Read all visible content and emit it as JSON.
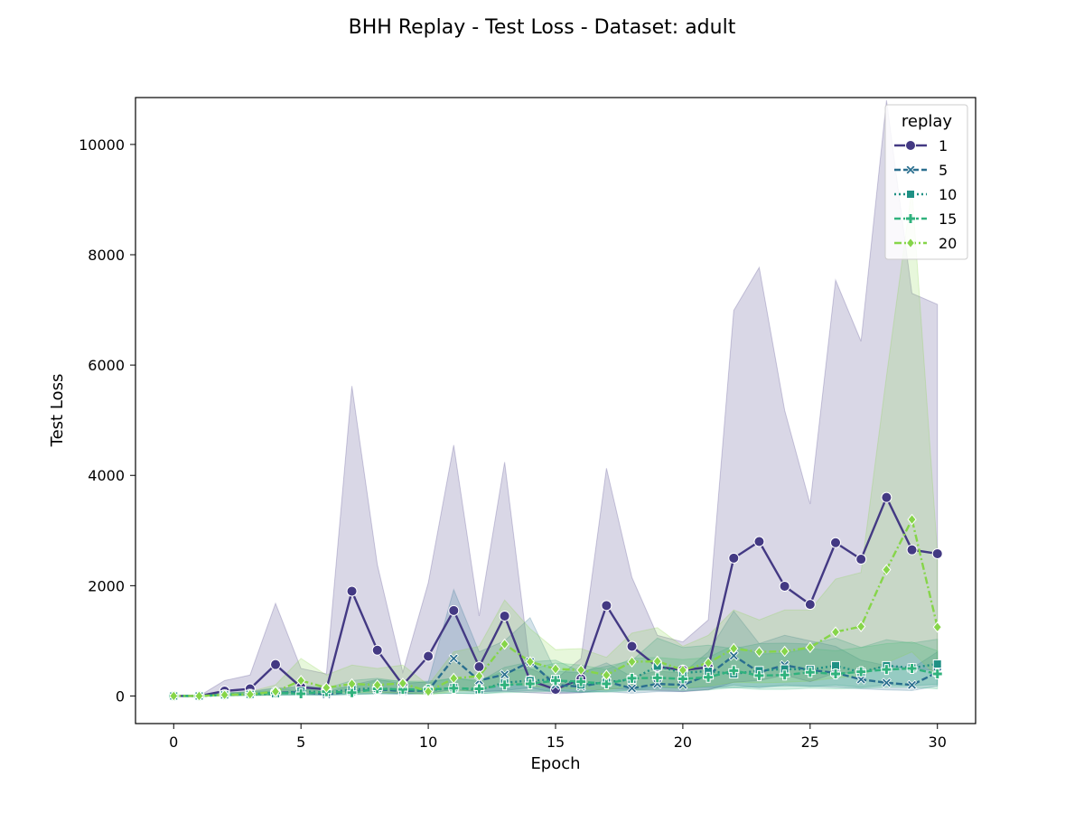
{
  "chart_data": {
    "type": "line",
    "title": "BHH Replay - Test Loss - Dataset: adult",
    "xlabel": "Epoch",
    "ylabel": "Test Loss",
    "xlim": [
      -1.5,
      31.5
    ],
    "ylim": [
      -500,
      10850
    ],
    "xticks": [
      0,
      5,
      10,
      15,
      20,
      25,
      30
    ],
    "yticks": [
      0,
      2000,
      4000,
      6000,
      8000,
      10000
    ],
    "grid": false,
    "legend": {
      "title": "replay",
      "placement": "top-right"
    },
    "x": [
      0,
      1,
      2,
      3,
      4,
      5,
      6,
      7,
      8,
      9,
      10,
      11,
      12,
      13,
      14,
      15,
      16,
      17,
      18,
      19,
      20,
      21,
      22,
      23,
      24,
      25,
      26,
      27,
      28,
      29,
      30
    ],
    "series": [
      {
        "name": "1",
        "color": "#433983",
        "marker": "circle",
        "dash": "solid",
        "values": [
          0,
          0,
          90,
          130,
          570,
          160,
          120,
          1900,
          830,
          200,
          720,
          1550,
          530,
          1450,
          280,
          120,
          310,
          1640,
          900,
          530,
          470,
          520,
          2500,
          2800,
          1990,
          1660,
          2780,
          2480,
          3600,
          2650,
          2580
        ],
        "lower": [
          0,
          0,
          10,
          20,
          100,
          30,
          40,
          100,
          80,
          40,
          60,
          110,
          80,
          90,
          60,
          40,
          60,
          130,
          120,
          100,
          80,
          110,
          250,
          280,
          380,
          260,
          420,
          420,
          550,
          500,
          460
        ],
        "upper": [
          0,
          0,
          280,
          380,
          1680,
          500,
          400,
          5620,
          2380,
          430,
          2050,
          4550,
          1450,
          4240,
          500,
          300,
          680,
          4130,
          2150,
          1100,
          980,
          1380,
          6990,
          7770,
          5180,
          3480,
          7540,
          6430,
          10800,
          7300,
          7100
        ]
      },
      {
        "name": "5",
        "color": "#2a6f8f",
        "marker": "x",
        "dash": "dashed",
        "values": [
          0,
          0,
          20,
          30,
          60,
          70,
          30,
          80,
          120,
          90,
          100,
          680,
          280,
          390,
          620,
          200,
          170,
          260,
          140,
          220,
          200,
          380,
          730,
          430,
          560,
          470,
          420,
          300,
          240,
          200,
          430
        ],
        "lower": [
          0,
          0,
          5,
          10,
          20,
          25,
          10,
          30,
          40,
          30,
          40,
          120,
          80,
          100,
          150,
          60,
          60,
          80,
          50,
          80,
          80,
          120,
          200,
          150,
          200,
          180,
          160,
          130,
          110,
          100,
          180
        ],
        "upper": [
          0,
          0,
          60,
          80,
          150,
          150,
          70,
          200,
          300,
          220,
          260,
          1930,
          800,
          1000,
          1420,
          450,
          420,
          600,
          350,
          450,
          420,
          800,
          1540,
          950,
          1100,
          1000,
          900,
          650,
          550,
          500,
          800
        ]
      },
      {
        "name": "10",
        "color": "#1f9084",
        "marker": "square",
        "dash": "dotted",
        "values": [
          0,
          0,
          20,
          30,
          40,
          90,
          60,
          120,
          140,
          110,
          100,
          150,
          110,
          240,
          280,
          300,
          200,
          250,
          300,
          540,
          420,
          450,
          400,
          460,
          490,
          480,
          550,
          430,
          550,
          510,
          580
        ],
        "lower": [
          0,
          0,
          5,
          10,
          10,
          30,
          20,
          40,
          50,
          40,
          40,
          50,
          40,
          80,
          100,
          100,
          70,
          90,
          110,
          150,
          140,
          160,
          150,
          170,
          180,
          170,
          200,
          160,
          200,
          190,
          210
        ],
        "upper": [
          0,
          0,
          50,
          70,
          100,
          200,
          140,
          280,
          320,
          260,
          240,
          330,
          260,
          520,
          620,
          650,
          440,
          540,
          640,
          1050,
          880,
          920,
          860,
          950,
          960,
          940,
          1050,
          880,
          1020,
          960,
          1030
        ]
      },
      {
        "name": "15",
        "color": "#30b27d",
        "marker": "plus",
        "dash": "dashed",
        "values": [
          0,
          0,
          20,
          30,
          60,
          40,
          80,
          60,
          130,
          120,
          120,
          140,
          130,
          200,
          220,
          280,
          260,
          220,
          320,
          330,
          310,
          340,
          460,
          370,
          380,
          430,
          400,
          440,
          480,
          500,
          400
        ],
        "lower": [
          0,
          0,
          5,
          10,
          20,
          10,
          25,
          20,
          40,
          40,
          40,
          50,
          40,
          60,
          70,
          90,
          80,
          70,
          100,
          110,
          100,
          110,
          150,
          120,
          120,
          140,
          130,
          140,
          160,
          160,
          130
        ],
        "upper": [
          0,
          0,
          50,
          70,
          140,
          90,
          180,
          140,
          290,
          270,
          270,
          320,
          290,
          450,
          480,
          600,
          560,
          480,
          680,
          700,
          660,
          700,
          920,
          760,
          780,
          860,
          820,
          880,
          950,
          980,
          820
        ]
      },
      {
        "name": "20",
        "color": "#86d549",
        "marker": "diamond",
        "dash": "dashdot",
        "values": [
          0,
          0,
          20,
          30,
          80,
          280,
          150,
          220,
          200,
          230,
          80,
          320,
          360,
          940,
          620,
          490,
          470,
          380,
          620,
          630,
          470,
          600,
          860,
          800,
          810,
          880,
          1160,
          1260,
          2290,
          3200,
          1250
        ],
        "lower": [
          0,
          0,
          5,
          10,
          20,
          80,
          40,
          60,
          60,
          70,
          20,
          90,
          100,
          250,
          180,
          140,
          130,
          110,
          180,
          180,
          140,
          180,
          250,
          240,
          250,
          270,
          330,
          360,
          600,
          800,
          350
        ],
        "upper": [
          0,
          0,
          50,
          80,
          200,
          680,
          380,
          560,
          500,
          560,
          200,
          800,
          900,
          1740,
          1220,
          840,
          860,
          700,
          1140,
          1240,
          900,
          1100,
          1560,
          1380,
          1560,
          1560,
          2120,
          2240,
          5800,
          9200,
          2600
        ]
      }
    ]
  }
}
